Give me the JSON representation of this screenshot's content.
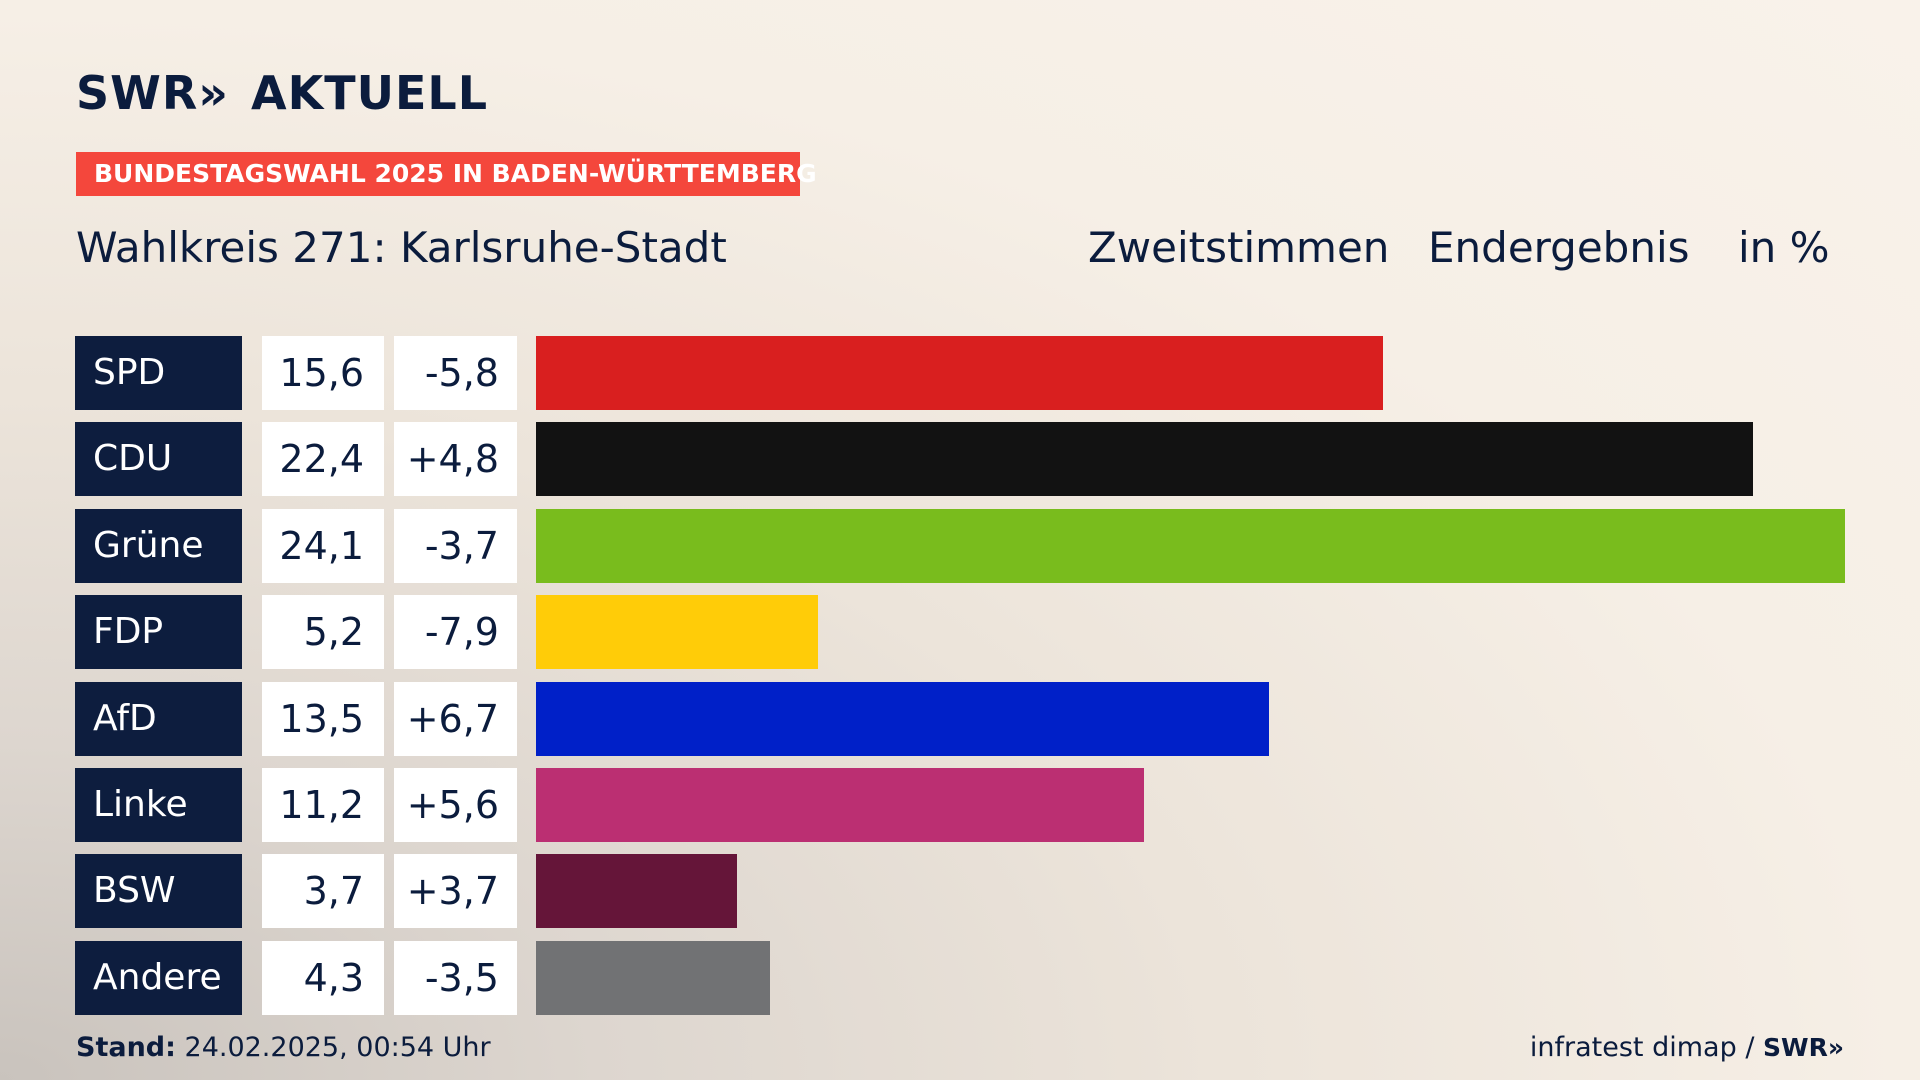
{
  "header": {
    "logo_text": "SWR",
    "logo_arrows": "»",
    "logo_suffix": "AKTUELL",
    "banner": "BUNDESTAGSWAHL 2025 IN BADEN-WÜRTTEMBERG",
    "subtitle": "Wahlkreis 271: Karlsruhe-Stadt",
    "col_vote": "Zweitstimmen",
    "col_result": "Endergebnis",
    "col_unit": "in %"
  },
  "footer": {
    "stand_label": "Stand:",
    "stand_value": "24.02.2025, 00:54 Uhr",
    "source": "infratest dimap /",
    "source_logo": "SWR»"
  },
  "colors": {
    "SPD": "#d91f1f",
    "CDU": "#121212",
    "Grüne": "#79bc1d",
    "FDP": "#ffcc08",
    "AfD": "#0020c8",
    "Linke": "#bb2f72",
    "BSW": "#651539",
    "Andere": "#717274"
  },
  "chart_data": {
    "type": "bar",
    "orientation": "horizontal",
    "categories": [
      "SPD",
      "CDU",
      "Grüne",
      "FDP",
      "AfD",
      "Linke",
      "BSW",
      "Andere"
    ],
    "values": [
      15.6,
      22.4,
      24.1,
      5.2,
      13.5,
      11.2,
      3.7,
      4.3
    ],
    "value_labels": [
      "15,6",
      "22,4",
      "24,1",
      "5,2",
      "13,5",
      "11,2",
      "3,7",
      "4,3"
    ],
    "diff_labels": [
      "-5,8",
      "+4,8",
      "-3,7",
      "-7,9",
      "+6,7",
      "+5,6",
      "+3,7",
      "-3,5"
    ],
    "diffs": [
      -5.8,
      4.8,
      -3.7,
      -7.9,
      6.7,
      5.6,
      3.7,
      -3.5
    ],
    "title": "Wahlkreis 271: Karlsruhe-Stadt",
    "xlabel": "",
    "ylabel": "",
    "xlim": [
      0,
      24.1
    ],
    "grid": false,
    "legend": "none"
  }
}
